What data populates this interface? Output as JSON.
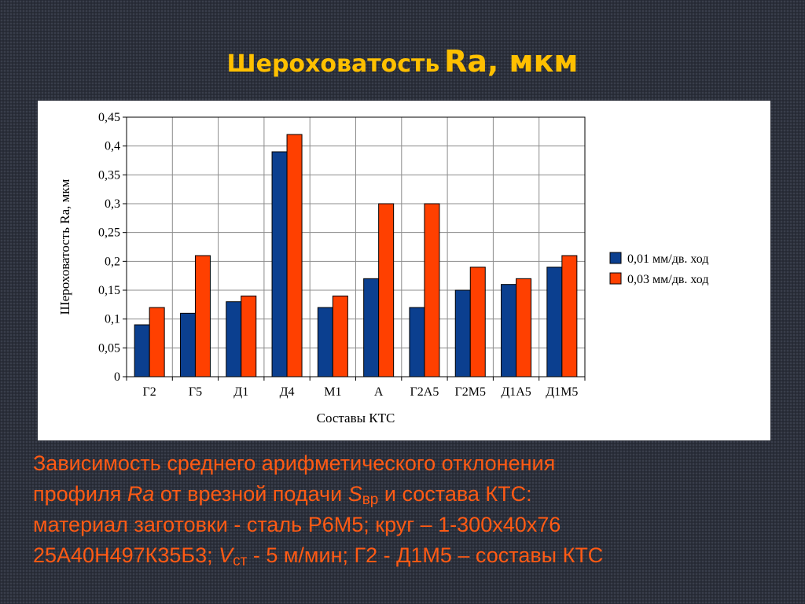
{
  "slide": {
    "title_main": "Шероховатость",
    "title_symbol": "Ra, мкм"
  },
  "chart_data": {
    "type": "bar",
    "categories": [
      "Г2",
      "Г5",
      "Д1",
      "Д4",
      "М1",
      "А",
      "Г2А5",
      "Г2М5",
      "Д1А5",
      "Д1М5"
    ],
    "series": [
      {
        "name": "0,01 мм/дв. ход",
        "color": "#0b3f8f",
        "values": [
          0.09,
          0.11,
          0.13,
          0.39,
          0.12,
          0.17,
          0.12,
          0.15,
          0.16,
          0.19
        ]
      },
      {
        "name": "0,03 мм/дв. ход",
        "color": "#ff4000",
        "values": [
          0.12,
          0.21,
          0.14,
          0.42,
          0.14,
          0.3,
          0.3,
          0.19,
          0.17,
          0.21
        ]
      }
    ],
    "xlabel": "Составы КТС",
    "ylabel": "Шероховатость Ra, мкм",
    "ylim": [
      0,
      0.45
    ],
    "yticks": [
      0,
      0.05,
      0.1,
      0.15,
      0.2,
      0.25,
      0.3,
      0.35,
      0.4,
      0.45
    ],
    "ytick_labels": [
      "0",
      "0,05",
      "0,1",
      "0,15",
      "0,2",
      "0,25",
      "0,3",
      "0,35",
      "0,4",
      "0,45"
    ],
    "grid": true,
    "legend_position": "right"
  },
  "caption": {
    "line1": "Зависимость среднего арифметического отклонения",
    "line2_a": "профиля ",
    "line2_ra": "Ra",
    "line2_b": " от врезной подачи ",
    "line2_s": "S",
    "line2_s_sub": "вр",
    "line2_c": " и состава КТС:",
    "line3": "материал заготовки - сталь Р6М5; круг – 1-300х40х76",
    "line4_a": "25А40Н497К35Б3; ",
    "line4_v": "V",
    "line4_v_sub": "ст",
    "line4_b": " - 5 м/мин; Г2 - Д1М5 – составы КТС"
  }
}
